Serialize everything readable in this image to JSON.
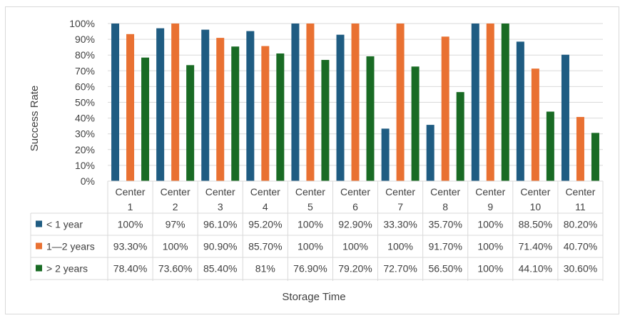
{
  "chart_data": {
    "type": "bar",
    "xlabel": "Storage Time",
    "ylabel": "Success Rate",
    "ylim": [
      0,
      100
    ],
    "y_ticks": [
      "0%",
      "10%",
      "20%",
      "30%",
      "40%",
      "50%",
      "60%",
      "70%",
      "80%",
      "90%",
      "100%"
    ],
    "categories": [
      [
        "Center",
        "1"
      ],
      [
        "Center",
        "2"
      ],
      [
        "Center",
        "3"
      ],
      [
        "Center",
        "4"
      ],
      [
        "Center",
        "5"
      ],
      [
        "Center",
        "6"
      ],
      [
        "Center",
        "7"
      ],
      [
        "Center",
        "8"
      ],
      [
        "Center",
        "9"
      ],
      [
        "Center",
        "10"
      ],
      [
        "Center",
        "11"
      ]
    ],
    "series": [
      {
        "name": "< 1 year",
        "color": "#1f5c82",
        "values": [
          100,
          97,
          96.1,
          95.2,
          100,
          92.9,
          33.3,
          35.7,
          100,
          88.5,
          80.2
        ],
        "labels": [
          "100%",
          "97%",
          "96.10%",
          "95.20%",
          "100%",
          "92.90%",
          "33.30%",
          "35.70%",
          "100%",
          "88.50%",
          "80.20%"
        ]
      },
      {
        "name": "1—2 years",
        "color": "#e97132",
        "values": [
          93.3,
          100,
          90.9,
          85.7,
          100,
          100,
          100,
          91.7,
          100,
          71.4,
          40.7
        ],
        "labels": [
          "93.30%",
          "100%",
          "90.90%",
          "85.70%",
          "100%",
          "100%",
          "100%",
          "91.70%",
          "100%",
          "71.40%",
          "40.70%"
        ]
      },
      {
        "name": "> 2 years",
        "color": "#196b24",
        "values": [
          78.4,
          73.6,
          85.4,
          81,
          76.9,
          79.2,
          72.7,
          56.5,
          100,
          44.1,
          30.6
        ],
        "labels": [
          "78.40%",
          "73.60%",
          "85.40%",
          "81%",
          "76.90%",
          "79.20%",
          "72.70%",
          "56.50%",
          "100%",
          "44.10%",
          "30.60%"
        ]
      }
    ],
    "grid": true,
    "legend": "data-table"
  }
}
